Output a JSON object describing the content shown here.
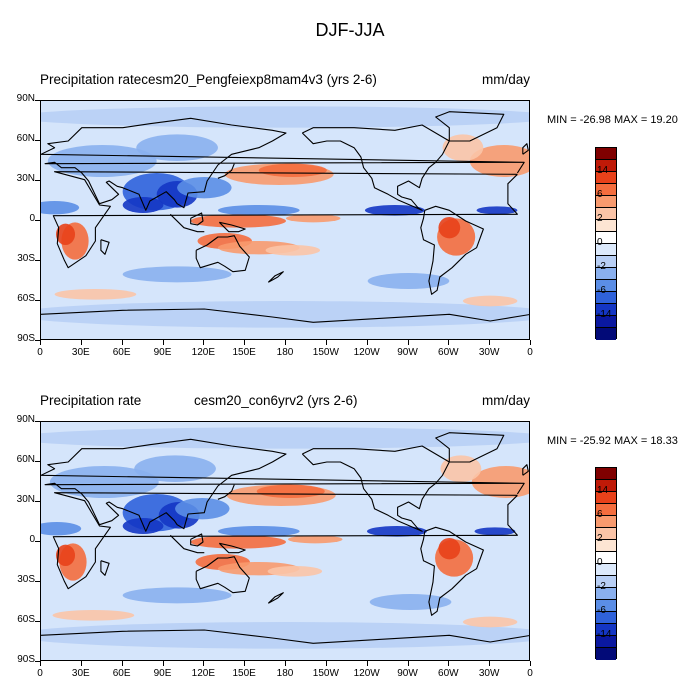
{
  "title": "DJF-JJA",
  "panels": [
    {
      "left_title": "Precipitation ratecesm20_Pengfeiexp8mam4v3 (yrs 2-6)",
      "units": "mm/day",
      "minmax": "MIN = -26.98 MAX =  19.20"
    },
    {
      "left_title": "Precipitation rate",
      "center_title": "cesm20_con6yrv2 (yrs 2-6)",
      "units": "mm/day",
      "minmax": "MIN = -25.92 MAX =  18.33"
    }
  ],
  "y_ticks": [
    "90N",
    "60N",
    "30N",
    "0",
    "30S",
    "60S",
    "90S"
  ],
  "x_ticks": [
    "0",
    "30E",
    "60E",
    "90E",
    "120E",
    "150E",
    "180",
    "150W",
    "120W",
    "90W",
    "60W",
    "30W",
    "0"
  ],
  "colorbar": {
    "colors": [
      "#7f0000",
      "#bf1a08",
      "#e8411a",
      "#f46d3e",
      "#f89a6e",
      "#fbc4a7",
      "#fde5d3",
      "#ffffff",
      "#dce9fb",
      "#b8cff5",
      "#8ab0ee",
      "#5b8ee6",
      "#2f62db",
      "#1436c4",
      "#0a18a0",
      "#020a78"
    ],
    "labels": [
      "14",
      "6",
      "2",
      "0",
      "-2",
      "-6",
      "-14"
    ]
  },
  "colors": {
    "ocean_base": "#d5e5fb",
    "wet": "#2f62db",
    "dry": "#f46d3e"
  }
}
